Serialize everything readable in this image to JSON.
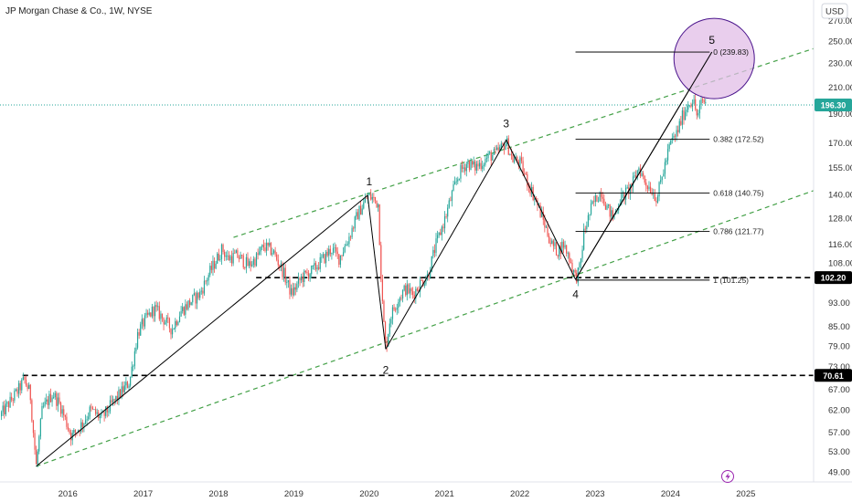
{
  "header": {
    "title": "JP Morgan Chase & Co., 1W, NYSE",
    "currency": "USD"
  },
  "colors": {
    "up": "#26a69a",
    "down": "#ef5350",
    "channel": "#43a047",
    "wave_line": "#000000",
    "circle_fill": "#e1bee7",
    "circle_stroke": "#4a148c",
    "price_line": "#26a69a",
    "badge_dark": "#000000",
    "price_badge": "#26a69a",
    "lightning": "#9c27b0"
  },
  "chart_data": {
    "type": "candlestick",
    "y_scale": "log",
    "ylim": [
      47.2,
      292
    ],
    "x_range": [
      2015.1,
      2025.9
    ],
    "x_ticks": [
      {
        "x": 2016.0,
        "label": "2016"
      },
      {
        "x": 2017.0,
        "label": "2017"
      },
      {
        "x": 2018.0,
        "label": "2018"
      },
      {
        "x": 2019.0,
        "label": "2019"
      },
      {
        "x": 2020.0,
        "label": "2020"
      },
      {
        "x": 2021.0,
        "label": "2021"
      },
      {
        "x": 2022.0,
        "label": "2022"
      },
      {
        "x": 2023.0,
        "label": "2023"
      },
      {
        "x": 2024.0,
        "label": "2024"
      },
      {
        "x": 2025.0,
        "label": "2025"
      }
    ],
    "y_ticks": [
      {
        "v": 270,
        "label": "270.00"
      },
      {
        "v": 250,
        "label": "250.00"
      },
      {
        "v": 230,
        "label": "230.00"
      },
      {
        "v": 210,
        "label": "210.00"
      },
      {
        "v": 190,
        "label": "190.00"
      },
      {
        "v": 170,
        "label": "170.00"
      },
      {
        "v": 155,
        "label": "155.00"
      },
      {
        "v": 140,
        "label": "140.00"
      },
      {
        "v": 128,
        "label": "128.00"
      },
      {
        "v": 116,
        "label": "116.00"
      },
      {
        "v": 108,
        "label": "108.00"
      },
      {
        "v": 93,
        "label": "93.00"
      },
      {
        "v": 85,
        "label": "85.00"
      },
      {
        "v": 79,
        "label": "79.00"
      },
      {
        "v": 73,
        "label": "73.00"
      },
      {
        "v": 67,
        "label": "67.00"
      },
      {
        "v": 62,
        "label": "62.00"
      },
      {
        "v": 57,
        "label": "57.00"
      },
      {
        "v": 53,
        "label": "53.00"
      },
      {
        "v": 49,
        "label": "49.00"
      }
    ],
    "price_path": [
      [
        2015.1,
        60.5
      ],
      [
        2015.35,
        67
      ],
      [
        2015.42,
        69.5
      ],
      [
        2015.5,
        66
      ],
      [
        2015.58,
        50.07
      ],
      [
        2015.66,
        62
      ],
      [
        2015.8,
        66
      ],
      [
        2015.9,
        63
      ],
      [
        2016.05,
        56
      ],
      [
        2016.2,
        59
      ],
      [
        2016.3,
        62
      ],
      [
        2016.45,
        60
      ],
      [
        2016.55,
        62.5
      ],
      [
        2016.7,
        66
      ],
      [
        2016.82,
        69
      ],
      [
        2016.87,
        75
      ],
      [
        2016.93,
        83
      ],
      [
        2017.0,
        86
      ],
      [
        2017.15,
        91
      ],
      [
        2017.25,
        88
      ],
      [
        2017.38,
        84
      ],
      [
        2017.5,
        90
      ],
      [
        2017.62,
        93
      ],
      [
        2017.75,
        96
      ],
      [
        2017.88,
        104
      ],
      [
        2018.05,
        114
      ],
      [
        2018.12,
        110
      ],
      [
        2018.25,
        111
      ],
      [
        2018.4,
        107
      ],
      [
        2018.5,
        110
      ],
      [
        2018.6,
        115
      ],
      [
        2018.72,
        113
      ],
      [
        2018.85,
        105
      ],
      [
        2018.97,
        96
      ],
      [
        2019.1,
        102
      ],
      [
        2019.25,
        105
      ],
      [
        2019.4,
        110
      ],
      [
        2019.5,
        114
      ],
      [
        2019.6,
        110
      ],
      [
        2019.72,
        118
      ],
      [
        2019.85,
        130
      ],
      [
        2019.98,
        139
      ],
      [
        2020.05,
        138
      ],
      [
        2020.12,
        135
      ],
      [
        2020.17,
        95
      ],
      [
        2020.22,
        78
      ],
      [
        2020.28,
        88
      ],
      [
        2020.38,
        94
      ],
      [
        2020.48,
        98
      ],
      [
        2020.58,
        96
      ],
      [
        2020.68,
        100
      ],
      [
        2020.78,
        103
      ],
      [
        2020.88,
        115
      ],
      [
        2021.0,
        127
      ],
      [
        2021.1,
        140
      ],
      [
        2021.2,
        152
      ],
      [
        2021.3,
        158
      ],
      [
        2021.4,
        155
      ],
      [
        2021.5,
        158
      ],
      [
        2021.6,
        162
      ],
      [
        2021.68,
        163
      ],
      [
        2021.76,
        167
      ],
      [
        2021.82,
        171
      ],
      [
        2021.9,
        160
      ],
      [
        2022.0,
        158
      ],
      [
        2022.1,
        147
      ],
      [
        2022.2,
        138
      ],
      [
        2022.3,
        128
      ],
      [
        2022.42,
        116
      ],
      [
        2022.5,
        113
      ],
      [
        2022.58,
        116
      ],
      [
        2022.66,
        110
      ],
      [
        2022.74,
        102
      ],
      [
        2022.8,
        106
      ],
      [
        2022.85,
        121
      ],
      [
        2022.95,
        133
      ],
      [
        2023.0,
        137
      ],
      [
        2023.08,
        142
      ],
      [
        2023.16,
        133
      ],
      [
        2023.24,
        128
      ],
      [
        2023.32,
        137
      ],
      [
        2023.42,
        141
      ],
      [
        2023.5,
        146
      ],
      [
        2023.58,
        155
      ],
      [
        2023.66,
        147
      ],
      [
        2023.74,
        143
      ],
      [
        2023.82,
        138
      ],
      [
        2023.9,
        152
      ],
      [
        2024.0,
        170
      ],
      [
        2024.08,
        176
      ],
      [
        2024.16,
        188
      ],
      [
        2024.24,
        198
      ],
      [
        2024.3,
        200
      ],
      [
        2024.36,
        187
      ],
      [
        2024.42,
        200
      ],
      [
        2024.48,
        197
      ]
    ],
    "channel_lines": [
      {
        "x1": 2015.58,
        "y1": 50.07,
        "x2": 2025.9,
        "y2": 142
      },
      {
        "x1": 2018.2,
        "y1": 119,
        "x2": 2025.9,
        "y2": 243
      }
    ],
    "wave_lines": [
      [
        2015.58,
        50.07,
        2019.98,
        139.5
      ],
      [
        2019.98,
        139.5,
        2020.22,
        78
      ],
      [
        2020.22,
        78,
        2021.82,
        172
      ],
      [
        2021.82,
        172,
        2022.74,
        101.5
      ],
      [
        2022.74,
        101.5,
        2024.55,
        239.83
      ]
    ],
    "wave_labels": [
      {
        "label": "1",
        "x": 2020.0,
        "v": 147
      },
      {
        "label": "2",
        "x": 2020.22,
        "v": 72
      },
      {
        "label": "3",
        "x": 2021.82,
        "v": 183
      },
      {
        "label": "4",
        "x": 2022.74,
        "v": 96
      },
      {
        "label": "5",
        "x": 2024.55,
        "v": 251
      }
    ],
    "fib_levels": [
      {
        "label": "0 (239.83)",
        "v": 239.83
      },
      {
        "label": "0.382 (172.52)",
        "v": 172.52
      },
      {
        "label": "0.618 (140.75)",
        "v": 140.75
      },
      {
        "label": "0.786 (121.77)",
        "v": 121.77
      },
      {
        "label": "1 (101.25)",
        "v": 101.25
      }
    ],
    "fib_range": {
      "x1": 2022.74,
      "x2": 2024.52
    },
    "horizontal_levels": [
      {
        "v": 102.2,
        "x1": 2018.5,
        "badge": "102.20"
      },
      {
        "v": 70.61,
        "x1": 2015.4,
        "badge": "70.61"
      }
    ],
    "current_price": {
      "v": 196.3,
      "label": "196.30"
    },
    "target_circle": {
      "x": 2024.58,
      "v": 234
    }
  }
}
